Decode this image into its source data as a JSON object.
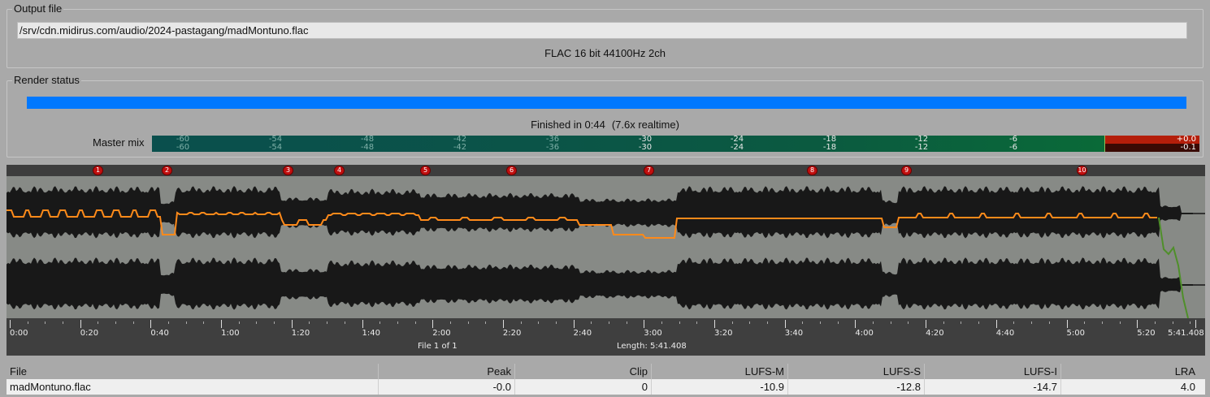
{
  "output": {
    "group_title": "Output file",
    "path": "/srv/cdn.midirus.com/audio/2024-pastagang/madMontuno.flac",
    "format": "FLAC 16 bit 44100Hz 2ch"
  },
  "render_status": {
    "group_title": "Render status",
    "progress": 1.0,
    "finished": "Finished in 0:44",
    "realtime": "(7.6x realtime)"
  },
  "master_mix": {
    "label": "Master mix",
    "scale": [
      "-60",
      "-54",
      "-48",
      "-42",
      "-36",
      "-30",
      "-24",
      "-18",
      "-12",
      "-6"
    ],
    "peak_top": "+0.0",
    "peak_bottom": "-0.1"
  },
  "waveform": {
    "markers": [
      "1",
      "2",
      "3",
      "4",
      "5",
      "6",
      "7",
      "8",
      "9",
      "10"
    ],
    "times": [
      "0:00",
      "0:20",
      "0:40",
      "1:00",
      "1:20",
      "1:40",
      "2:00",
      "2:20",
      "2:40",
      "3:00",
      "3:20",
      "3:40",
      "4:00",
      "4:20",
      "4:40",
      "5:00",
      "5:20",
      "5:41.408"
    ],
    "file_counter": "File 1 of 1",
    "length": "Length: 5:41.408"
  },
  "table": {
    "headers": [
      "File",
      "Peak",
      "Clip",
      "LUFS-M",
      "LUFS-S",
      "LUFS-I",
      "LRA"
    ],
    "rows": [
      [
        "madMontuno.flac",
        "-0.0",
        "0",
        "-10.9",
        "-12.8",
        "-14.7",
        "4.0"
      ]
    ]
  }
}
